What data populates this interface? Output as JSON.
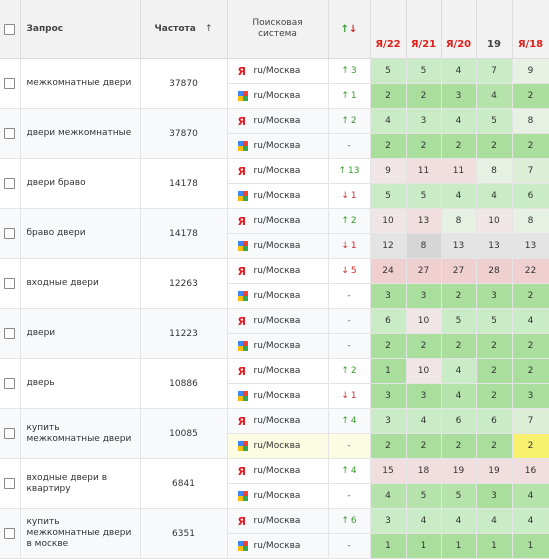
{
  "header": {
    "query": "Запрос",
    "frequency": "Частота",
    "freq_sort_icon": "↑",
    "engine_line1": "Поисковая",
    "engine_line2": "система",
    "change_up": "↑",
    "change_down": "↓",
    "dates": [
      {
        "label": "Я/22",
        "kind": "ya"
      },
      {
        "label": "Я/21",
        "kind": "ya"
      },
      {
        "label": "Я/20",
        "kind": "ya"
      },
      {
        "label": "19",
        "kind": "plain"
      },
      {
        "label": "Я/18",
        "kind": "ya"
      }
    ]
  },
  "icons": {
    "yandex": "Я",
    "yandex_name": "yandex-icon",
    "google_name": "google-icon"
  },
  "colors": {
    "up_arrow": "#3a9a2f",
    "down_arrow": "#d22b2b",
    "green_light": "#c9ebc5",
    "green_mid": "#a9de9d",
    "pink": "#f1dede",
    "red_light": "#efcfcf",
    "gray": "#d6d6d6",
    "yellow_light": "#fcfce2",
    "yellow": "#f8f16e"
  },
  "rows": [
    {
      "query": "межкомнатные двери",
      "freq": "37870",
      "engines": [
        {
          "type": "yandex",
          "region": "ru/Москва",
          "change": {
            "dir": "up",
            "value": "3"
          },
          "positions": [
            {
              "v": "5",
              "c": "#c9ebc5"
            },
            {
              "v": "5",
              "c": "#c9ebc5"
            },
            {
              "v": "4",
              "c": "#c9ebc5"
            },
            {
              "v": "7",
              "c": "#c9ebc5"
            },
            {
              "v": "9",
              "c": "#e6f0e3"
            }
          ]
        },
        {
          "type": "google",
          "region": "ru/Москва",
          "change": {
            "dir": "up",
            "value": "1"
          },
          "positions": [
            {
              "v": "2",
              "c": "#a9de9d"
            },
            {
              "v": "2",
              "c": "#a9de9d"
            },
            {
              "v": "3",
              "c": "#a9de9d"
            },
            {
              "v": "4",
              "c": "#b6e3ab"
            },
            {
              "v": "2",
              "c": "#a9de9d"
            }
          ]
        }
      ]
    },
    {
      "query": "двери межкомнатные",
      "freq": "37870",
      "engines": [
        {
          "type": "yandex",
          "region": "ru/Москва",
          "change": {
            "dir": "up",
            "value": "2"
          },
          "positions": [
            {
              "v": "4",
              "c": "#c9ebc5"
            },
            {
              "v": "3",
              "c": "#c9ebc5"
            },
            {
              "v": "4",
              "c": "#c9ebc5"
            },
            {
              "v": "5",
              "c": "#c9ebc5"
            },
            {
              "v": "8",
              "c": "#e6f0e3"
            }
          ]
        },
        {
          "type": "google",
          "region": "ru/Москва",
          "change": {
            "dir": "none",
            "value": "-"
          },
          "positions": [
            {
              "v": "2",
              "c": "#a9de9d"
            },
            {
              "v": "2",
              "c": "#a9de9d"
            },
            {
              "v": "2",
              "c": "#a9de9d"
            },
            {
              "v": "2",
              "c": "#a9de9d"
            },
            {
              "v": "2",
              "c": "#a9de9d"
            }
          ]
        }
      ]
    },
    {
      "query": "двери браво",
      "freq": "14178",
      "engines": [
        {
          "type": "yandex",
          "region": "ru/Москва",
          "change": {
            "dir": "up",
            "value": "13"
          },
          "positions": [
            {
              "v": "9",
              "c": "#f1e6e6"
            },
            {
              "v": "11",
              "c": "#f1dede"
            },
            {
              "v": "11",
              "c": "#f1dede"
            },
            {
              "v": "8",
              "c": "#e6f0e3"
            },
            {
              "v": "7",
              "c": "#dcefd6"
            }
          ]
        },
        {
          "type": "google",
          "region": "ru/Москва",
          "change": {
            "dir": "down",
            "value": "1"
          },
          "positions": [
            {
              "v": "5",
              "c": "#c9ebc5"
            },
            {
              "v": "5",
              "c": "#c9ebc5"
            },
            {
              "v": "4",
              "c": "#c9ebc5"
            },
            {
              "v": "4",
              "c": "#c9ebc5"
            },
            {
              "v": "6",
              "c": "#c9ebc5"
            }
          ]
        }
      ]
    },
    {
      "query": "браво двери",
      "freq": "14178",
      "engines": [
        {
          "type": "yandex",
          "region": "ru/Москва",
          "change": {
            "dir": "up",
            "value": "2"
          },
          "positions": [
            {
              "v": "10",
              "c": "#f1e6e6"
            },
            {
              "v": "13",
              "c": "#f1dede"
            },
            {
              "v": "8",
              "c": "#e6f0e3"
            },
            {
              "v": "10",
              "c": "#f1e6e6"
            },
            {
              "v": "8",
              "c": "#e6f0e3"
            }
          ]
        },
        {
          "type": "google",
          "region": "ru/Москва",
          "change": {
            "dir": "down",
            "value": "1"
          },
          "positions": [
            {
              "v": "12",
              "c": "#e4e4e4"
            },
            {
              "v": "8",
              "c": "#d6d6d6"
            },
            {
              "v": "13",
              "c": "#e4e4e4"
            },
            {
              "v": "13",
              "c": "#e4e4e4"
            },
            {
              "v": "13",
              "c": "#e4e4e4"
            }
          ]
        }
      ]
    },
    {
      "query": "входные двери",
      "freq": "12263",
      "engines": [
        {
          "type": "yandex",
          "region": "ru/Москва",
          "change": {
            "dir": "down",
            "value": "5"
          },
          "positions": [
            {
              "v": "24",
              "c": "#efcfcf"
            },
            {
              "v": "27",
              "c": "#efcfcf"
            },
            {
              "v": "27",
              "c": "#efcfcf"
            },
            {
              "v": "28",
              "c": "#efcfcf"
            },
            {
              "v": "22",
              "c": "#efcfcf"
            }
          ]
        },
        {
          "type": "google",
          "region": "ru/Москва",
          "change": {
            "dir": "none",
            "value": "-"
          },
          "positions": [
            {
              "v": "3",
              "c": "#a9de9d"
            },
            {
              "v": "3",
              "c": "#a9de9d"
            },
            {
              "v": "2",
              "c": "#a9de9d"
            },
            {
              "v": "3",
              "c": "#a9de9d"
            },
            {
              "v": "2",
              "c": "#a9de9d"
            }
          ]
        }
      ]
    },
    {
      "query": "двери",
      "freq": "11223",
      "engines": [
        {
          "type": "yandex",
          "region": "ru/Москва",
          "change": {
            "dir": "none",
            "value": "-"
          },
          "positions": [
            {
              "v": "6",
              "c": "#c9ebc5"
            },
            {
              "v": "10",
              "c": "#f1e6e6"
            },
            {
              "v": "5",
              "c": "#c9ebc5"
            },
            {
              "v": "5",
              "c": "#c9ebc5"
            },
            {
              "v": "4",
              "c": "#c9ebc5"
            }
          ]
        },
        {
          "type": "google",
          "region": "ru/Москва",
          "change": {
            "dir": "none",
            "value": "-"
          },
          "positions": [
            {
              "v": "2",
              "c": "#a9de9d"
            },
            {
              "v": "2",
              "c": "#a9de9d"
            },
            {
              "v": "2",
              "c": "#a9de9d"
            },
            {
              "v": "2",
              "c": "#a9de9d"
            },
            {
              "v": "2",
              "c": "#a9de9d"
            }
          ]
        }
      ]
    },
    {
      "query": "дверь",
      "freq": "10886",
      "engines": [
        {
          "type": "yandex",
          "region": "ru/Москва",
          "change": {
            "dir": "up",
            "value": "2"
          },
          "positions": [
            {
              "v": "1",
              "c": "#a9de9d"
            },
            {
              "v": "10",
              "c": "#f1e6e6"
            },
            {
              "v": "4",
              "c": "#c9ebc5"
            },
            {
              "v": "2",
              "c": "#a9de9d"
            },
            {
              "v": "2",
              "c": "#a9de9d"
            }
          ]
        },
        {
          "type": "google",
          "region": "ru/Москва",
          "change": {
            "dir": "down",
            "value": "1"
          },
          "positions": [
            {
              "v": "3",
              "c": "#a9de9d"
            },
            {
              "v": "3",
              "c": "#a9de9d"
            },
            {
              "v": "4",
              "c": "#b6e3ab"
            },
            {
              "v": "2",
              "c": "#a9de9d"
            },
            {
              "v": "3",
              "c": "#a9de9d"
            }
          ]
        }
      ]
    },
    {
      "query": "купить межкомнатные двери",
      "freq": "10085",
      "engines": [
        {
          "type": "yandex",
          "region": "ru/Москва",
          "change": {
            "dir": "up",
            "value": "4"
          },
          "positions": [
            {
              "v": "3",
              "c": "#c9ebc5"
            },
            {
              "v": "4",
              "c": "#c9ebc5"
            },
            {
              "v": "6",
              "c": "#c9ebc5"
            },
            {
              "v": "6",
              "c": "#c9ebc5"
            },
            {
              "v": "7",
              "c": "#dcefd6"
            }
          ]
        },
        {
          "type": "google",
          "region": "ru/Москва",
          "change": {
            "dir": "none",
            "value": "-"
          },
          "positions": [
            {
              "v": "2",
              "c": "#a9de9d"
            },
            {
              "v": "2",
              "c": "#a9de9d"
            },
            {
              "v": "2",
              "c": "#a9de9d"
            },
            {
              "v": "2",
              "c": "#a9de9d"
            },
            {
              "v": "2",
              "c": "#f8f16e"
            }
          ],
          "highlight": true
        }
      ]
    },
    {
      "query": "входные двери в квартиру",
      "freq": "6841",
      "engines": [
        {
          "type": "yandex",
          "region": "ru/Москва",
          "change": {
            "dir": "up",
            "value": "4"
          },
          "positions": [
            {
              "v": "15",
              "c": "#f1dede"
            },
            {
              "v": "18",
              "c": "#f1dede"
            },
            {
              "v": "19",
              "c": "#f1dede"
            },
            {
              "v": "19",
              "c": "#f1dede"
            },
            {
              "v": "16",
              "c": "#f1dede"
            }
          ]
        },
        {
          "type": "google",
          "region": "ru/Москва",
          "change": {
            "dir": "none",
            "value": "-"
          },
          "positions": [
            {
              "v": "4",
              "c": "#b6e3ab"
            },
            {
              "v": "5",
              "c": "#b6e3ab"
            },
            {
              "v": "5",
              "c": "#b6e3ab"
            },
            {
              "v": "3",
              "c": "#a9de9d"
            },
            {
              "v": "4",
              "c": "#b6e3ab"
            }
          ]
        }
      ]
    },
    {
      "query": "купить межкомнатные двери в москве",
      "freq": "6351",
      "engines": [
        {
          "type": "yandex",
          "region": "ru/Москва",
          "change": {
            "dir": "up",
            "value": "6"
          },
          "positions": [
            {
              "v": "3",
              "c": "#c9ebc5"
            },
            {
              "v": "4",
              "c": "#c9ebc5"
            },
            {
              "v": "4",
              "c": "#c9ebc5"
            },
            {
              "v": "4",
              "c": "#c9ebc5"
            },
            {
              "v": "4",
              "c": "#c9ebc5"
            }
          ]
        },
        {
          "type": "google",
          "region": "ru/Москва",
          "change": {
            "dir": "none",
            "value": "-"
          },
          "positions": [
            {
              "v": "1",
              "c": "#a9de9d"
            },
            {
              "v": "1",
              "c": "#a9de9d"
            },
            {
              "v": "1",
              "c": "#a9de9d"
            },
            {
              "v": "1",
              "c": "#a9de9d"
            },
            {
              "v": "1",
              "c": "#a9de9d"
            }
          ]
        }
      ]
    }
  ]
}
